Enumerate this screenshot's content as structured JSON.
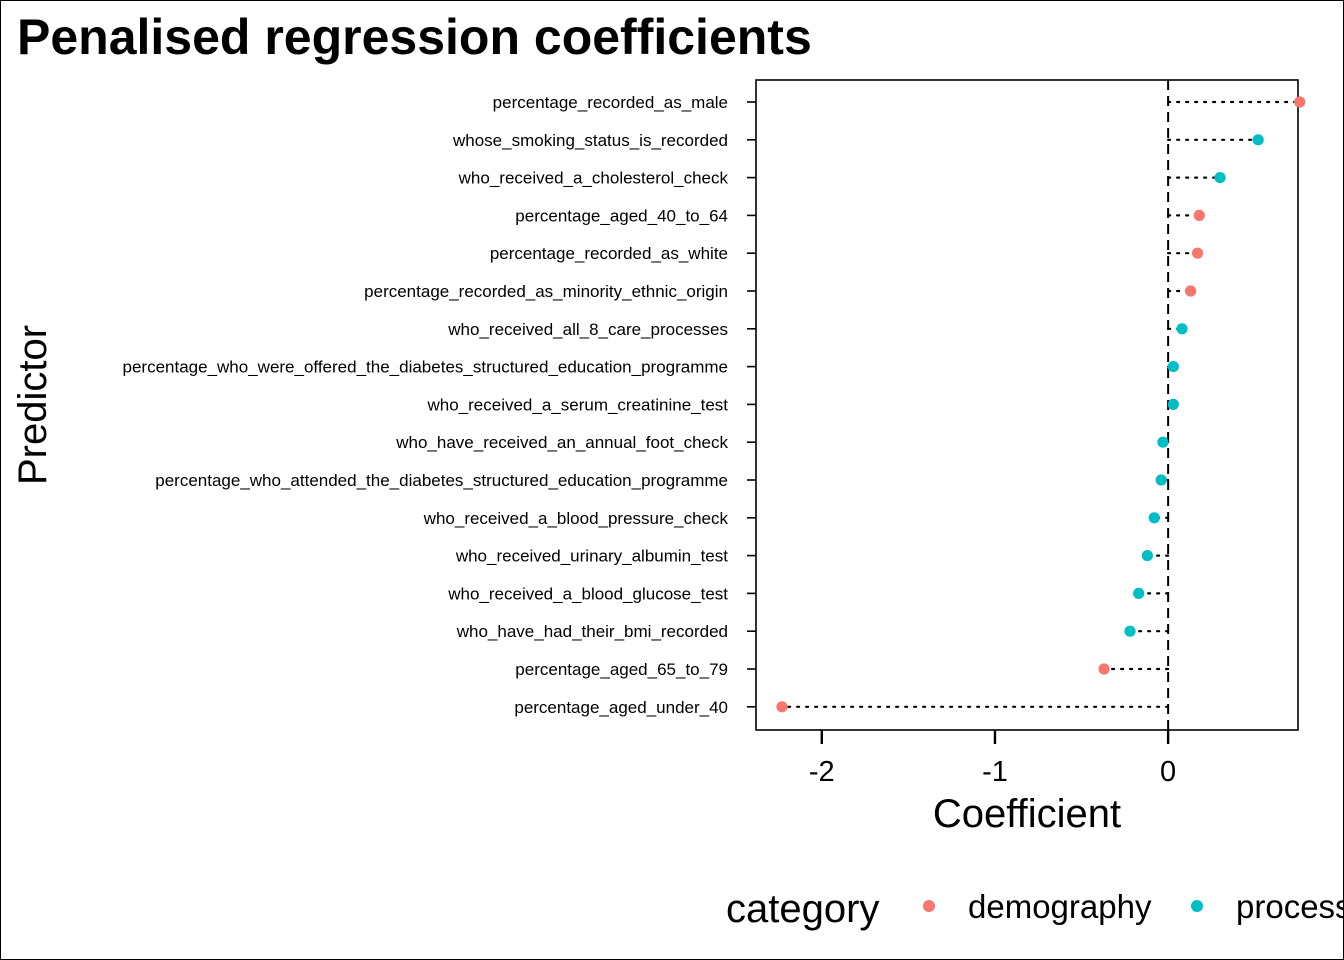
{
  "chart_data": {
    "type": "scatter",
    "title": "Penalised regression coefficients",
    "xlabel": "Coefficient",
    "ylabel": "Predictor",
    "xlim": [
      -2.38,
      0.75
    ],
    "xticks": [
      -2,
      -1,
      0
    ],
    "xtick_labels": [
      "-2",
      "-1",
      "0"
    ],
    "reference_line": 0,
    "grid": false,
    "legend": {
      "title": "category",
      "position": "bottom",
      "entries": [
        {
          "name": "demography",
          "color": "#F8766D"
        },
        {
          "name": "process",
          "color": "#00BFC4"
        }
      ]
    },
    "predictors": [
      {
        "name": "percentage_recorded_as_male",
        "category": "demography",
        "value": 0.76
      },
      {
        "name": "whose_smoking_status_is_recorded",
        "category": "process",
        "value": 0.52
      },
      {
        "name": "who_received_a_cholesterol_check",
        "category": "process",
        "value": 0.3
      },
      {
        "name": "percentage_aged_40_to_64",
        "category": "demography",
        "value": 0.18
      },
      {
        "name": "percentage_recorded_as_white",
        "category": "demography",
        "value": 0.17
      },
      {
        "name": "percentage_recorded_as_minority_ethnic_origin",
        "category": "demography",
        "value": 0.13
      },
      {
        "name": "who_received_all_8_care_processes",
        "category": "process",
        "value": 0.08
      },
      {
        "name": "percentage_who_were_offered_the_diabetes_structured_education_programme",
        "category": "process",
        "value": 0.03
      },
      {
        "name": "who_received_a_serum_creatinine_test",
        "category": "process",
        "value": 0.03
      },
      {
        "name": "who_have_received_an_annual_foot_check",
        "category": "process",
        "value": -0.03
      },
      {
        "name": "percentage_who_attended_the_diabetes_structured_education_programme",
        "category": "process",
        "value": -0.04
      },
      {
        "name": "who_received_a_blood_pressure_check",
        "category": "process",
        "value": -0.08
      },
      {
        "name": "who_received_urinary_albumin_test",
        "category": "process",
        "value": -0.12
      },
      {
        "name": "who_received_a_blood_glucose_test",
        "category": "process",
        "value": -0.17
      },
      {
        "name": "who_have_had_their_bmi_recorded",
        "category": "process",
        "value": -0.22
      },
      {
        "name": "percentage_aged_65_to_79",
        "category": "demography",
        "value": -0.37
      },
      {
        "name": "percentage_aged_under_40",
        "category": "demography",
        "value": -2.23
      }
    ]
  }
}
